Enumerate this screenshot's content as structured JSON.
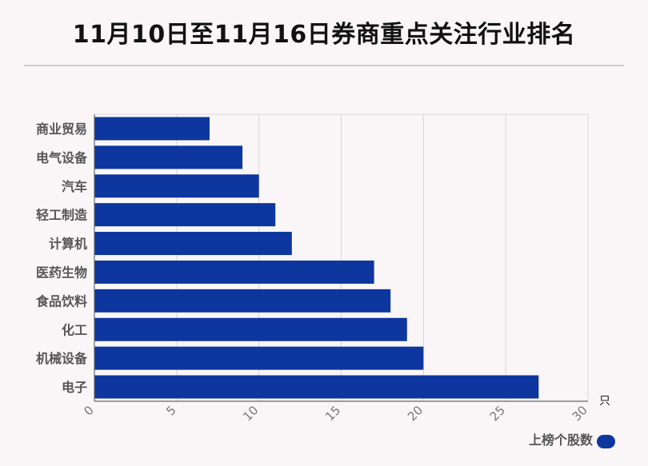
{
  "title": "11月10日至11月16日券商重点关注行业排名",
  "chart_data": {
    "type": "bar",
    "orientation": "horizontal",
    "categories": [
      "商业贸易",
      "电气设备",
      "汽车",
      "轻工制造",
      "计算机",
      "医药生物",
      "食品饮料",
      "化工",
      "机械设备",
      "电子"
    ],
    "series": [
      {
        "name": "上榜个股数",
        "values": [
          7,
          9,
          10,
          11,
          12,
          17,
          18,
          19,
          20,
          27
        ]
      }
    ],
    "xlim": [
      0,
      30
    ],
    "xticks": [
      0,
      5,
      10,
      15,
      20,
      25,
      30
    ],
    "x_unit": "只",
    "grid": true,
    "legend_position": "bottom-right",
    "bar_color": "#0d369e"
  }
}
